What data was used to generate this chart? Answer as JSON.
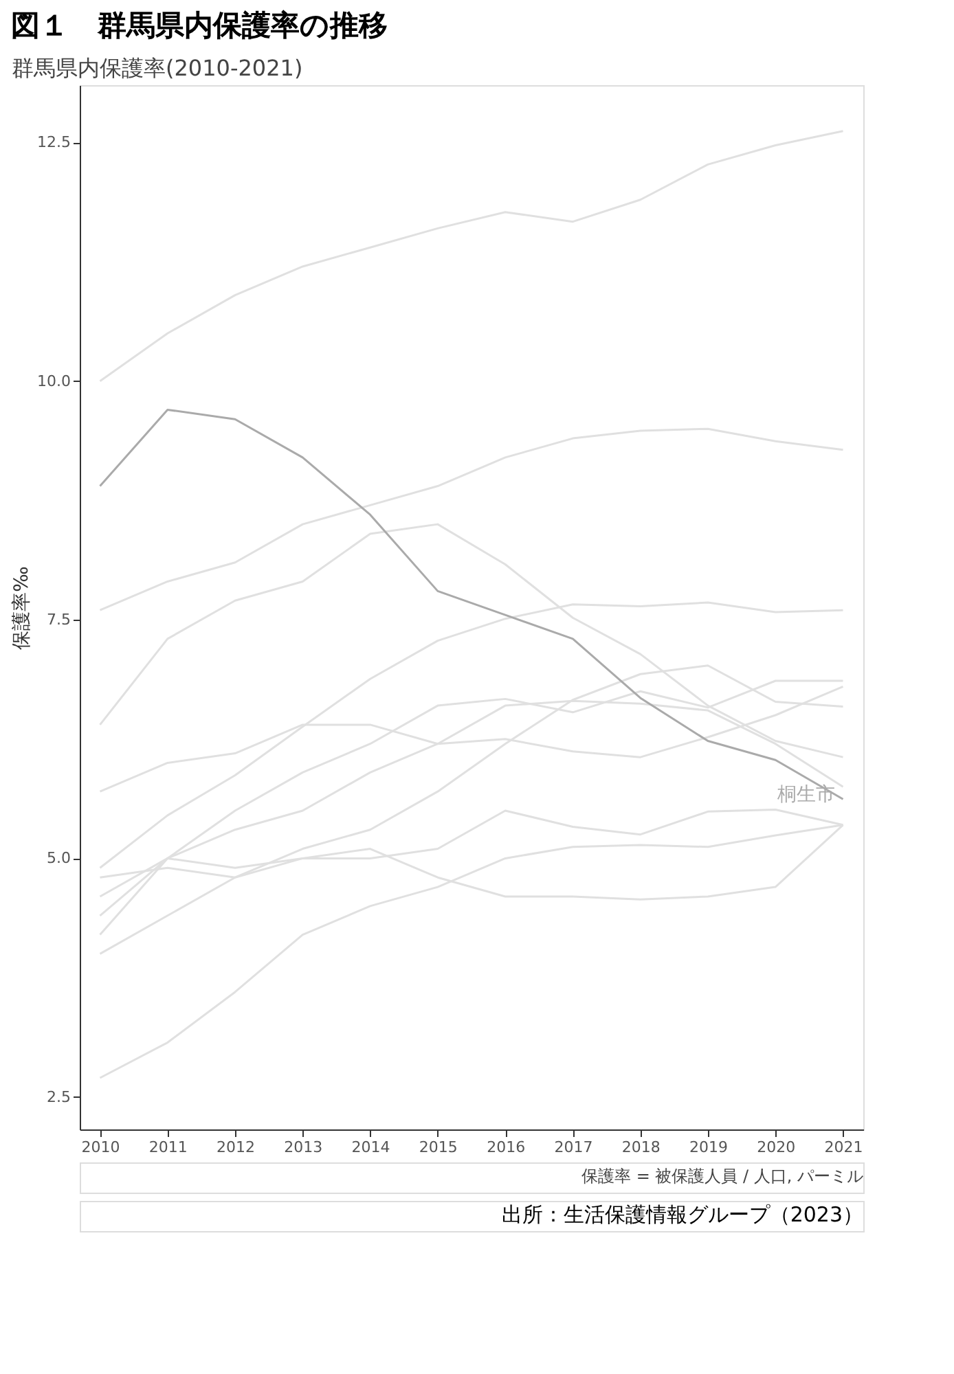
{
  "chart_data": {
    "type": "line",
    "title": "図１　群馬県内保護率の推移",
    "subtitle": "群馬県内保護率(2010-2021)",
    "ylabel": "保護率‰",
    "categories": [
      "2010",
      "2011",
      "2012",
      "2013",
      "2014",
      "2015",
      "2016",
      "2017",
      "2018",
      "2019",
      "2020",
      "2021"
    ],
    "ylim": [
      2.16,
      13.1
    ],
    "yticks": [
      2.5,
      {
        "value": 5,
        "label": "5.0"
      },
      7.5,
      {
        "value": 10,
        "label": "10.0"
      },
      12.5
    ],
    "grid": false,
    "line_style": "solid",
    "series": [
      {
        "color": "#e0e0e0",
        "values": [
          10.0,
          10.5,
          10.9,
          11.2,
          11.4,
          11.6,
          11.77,
          11.67,
          11.9,
          12.27,
          12.47,
          12.62
        ]
      },
      {
        "color": "#e0e0e0",
        "values": [
          7.6,
          7.9,
          8.1,
          8.5,
          8.7,
          8.9,
          9.2,
          9.4,
          9.48,
          9.5,
          9.37,
          9.28
        ]
      },
      {
        "color": "#e0e0e0",
        "values": [
          6.4,
          7.3,
          7.7,
          7.9,
          8.4,
          8.5,
          8.08,
          7.52,
          7.14,
          6.6,
          6.23,
          6.06
        ]
      },
      {
        "color": "#e0e0e0",
        "values": [
          4.9,
          5.45,
          5.87,
          6.38,
          6.88,
          7.28,
          7.51,
          7.66,
          7.64,
          7.68,
          7.58,
          7.6
        ]
      },
      {
        "color": "#e0e0e0",
        "values": [
          5.7,
          6.0,
          6.1,
          6.4,
          6.4,
          6.2,
          6.25,
          6.12,
          6.06,
          6.27,
          6.5,
          6.8
        ]
      },
      {
        "color": "#e0e0e0",
        "values": [
          4.0,
          4.4,
          4.8,
          5.1,
          5.3,
          5.7,
          6.2,
          6.66,
          6.93,
          7.02,
          6.64,
          6.59
        ]
      },
      {
        "color": "#e0e0e0",
        "values": [
          4.4,
          5.0,
          5.5,
          5.9,
          6.2,
          6.6,
          6.67,
          6.53,
          6.75,
          6.58,
          6.86,
          6.86
        ]
      },
      {
        "color": "#e0e0e0",
        "values": [
          4.6,
          5.0,
          5.3,
          5.5,
          5.9,
          6.2,
          6.6,
          6.65,
          6.62,
          6.55,
          6.2,
          5.75
        ]
      },
      {
        "color": "#e0e0e0",
        "values": [
          4.8,
          4.9,
          4.8,
          5.0,
          5.0,
          5.1,
          5.5,
          5.33,
          5.25,
          5.49,
          5.51,
          5.35
        ]
      },
      {
        "color": "#e0e0e0",
        "values": [
          4.2,
          5.0,
          4.9,
          5.0,
          5.1,
          4.8,
          4.6,
          4.6,
          4.57,
          4.6,
          4.7,
          5.35
        ]
      },
      {
        "color": "#e0e0e0",
        "values": [
          2.7,
          3.07,
          3.6,
          4.2,
          4.5,
          4.7,
          5.0,
          5.12,
          5.14,
          5.12,
          5.24,
          5.35
        ]
      },
      {
        "name": "桐生市",
        "color": "#aaaaaa",
        "values": [
          8.9,
          9.7,
          9.6,
          9.2,
          8.6,
          7.8,
          7.55,
          7.3,
          6.68,
          6.23,
          6.03,
          5.62
        ]
      }
    ],
    "annotations": [
      "保護率 = 被保護人員 / 人口, パーミル",
      "出所：生活保護情報グループ（2023）"
    ]
  }
}
